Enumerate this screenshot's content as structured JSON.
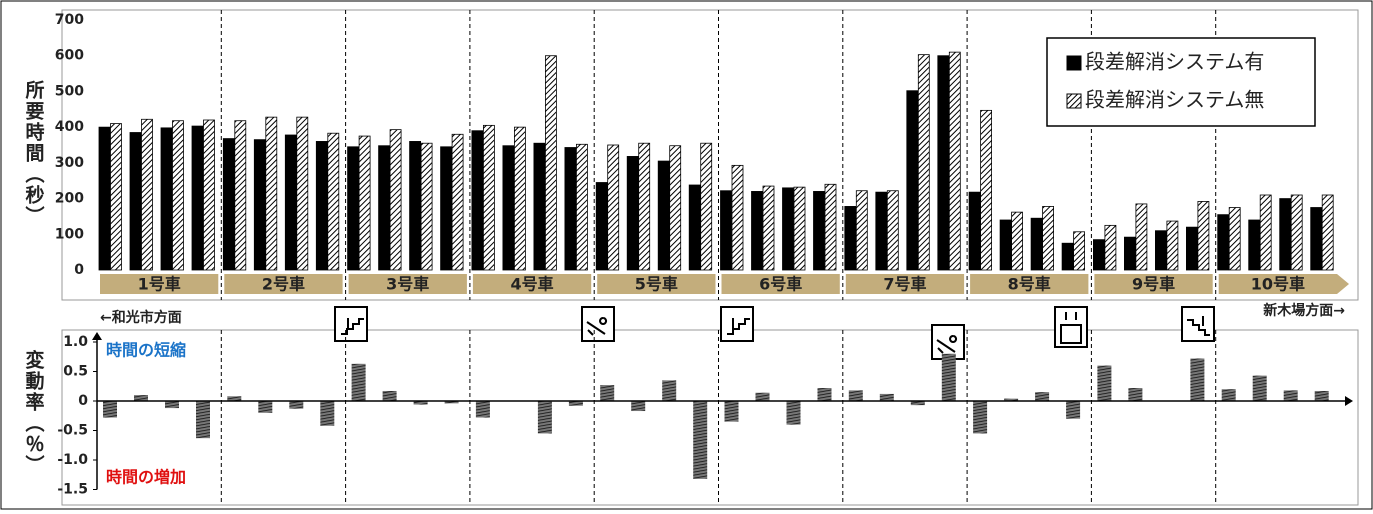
{
  "chart_data": [
    {
      "type": "bar",
      "y_label": "所要時間（秒）",
      "groups": [
        "1号車",
        "2号車",
        "3号車",
        "4号車",
        "5号車",
        "6号車",
        "7号車",
        "8号車",
        "9号車",
        "10号車"
      ],
      "categories": [
        null,
        null,
        null,
        null,
        null,
        null,
        null,
        null,
        null,
        null,
        null,
        null,
        null,
        null,
        null,
        null,
        null,
        null,
        null,
        null,
        null,
        null,
        null,
        null,
        null,
        null,
        null,
        null,
        null,
        null,
        null,
        null,
        null,
        null,
        null,
        null,
        null,
        null,
        null,
        null
      ],
      "series": [
        {
          "name": "段差解消システム有",
          "color": "#000000",
          "hatch": false,
          "values": [
            400,
            385,
            398,
            403,
            368,
            365,
            378,
            360,
            345,
            348,
            360,
            345,
            390,
            348,
            355,
            343,
            245,
            318,
            305,
            238,
            222,
            220,
            230,
            220,
            178,
            218,
            502,
            600,
            218,
            140,
            145,
            75,
            85,
            92,
            110,
            120,
            155,
            140,
            200,
            175
          ]
        },
        {
          "name": "段差解消システム無",
          "color": "#000000",
          "hatch": true,
          "values": [
            410,
            422,
            418,
            420,
            418,
            428,
            428,
            383,
            375,
            393,
            355,
            380,
            405,
            400,
            600,
            352,
            350,
            355,
            348,
            355,
            293,
            235,
            232,
            240,
            222,
            222,
            603,
            610,
            447,
            162,
            178,
            107,
            125,
            185,
            137,
            192,
            175,
            210,
            210,
            210
          ]
        }
      ],
      "ylim": [
        0,
        700
      ],
      "yticks": [
        0,
        100,
        200,
        300,
        400,
        500,
        600,
        700
      ],
      "legend": "upper right",
      "direction_left": "←和光市方面",
      "direction_right": "新木場方面→",
      "group_color": "#c3ad7c"
    },
    {
      "type": "bar",
      "y_label": "変動率（％）",
      "values": [
        -0.28,
        0.1,
        -0.12,
        -0.63,
        0.08,
        -0.2,
        -0.13,
        -0.42,
        0.63,
        0.17,
        -0.06,
        -0.04,
        -0.28,
        0,
        -0.55,
        -0.08,
        0.27,
        -0.17,
        0.35,
        -1.32,
        -0.35,
        0.14,
        -0.4,
        0.22,
        0.18,
        0.12,
        -0.07,
        0.8,
        -0.55,
        0.04,
        0.15,
        -0.3,
        0.6,
        0.22,
        0,
        0.72,
        0.2,
        0.43,
        0.18,
        0.17
      ],
      "color": "#333333",
      "hatch": true,
      "ylim": [
        -1.5,
        1
      ],
      "yticks": [
        {
          "value": 1,
          "label": "1.0"
        },
        0.5,
        0,
        -0.5,
        {
          "value": -1,
          "label": "-1.0"
        },
        -1.5
      ],
      "annotations": [
        {
          "text": "時間の短縮",
          "color": "#1a73c8"
        },
        {
          "text": "時間の増加",
          "color": "#e01010"
        }
      ]
    }
  ]
}
